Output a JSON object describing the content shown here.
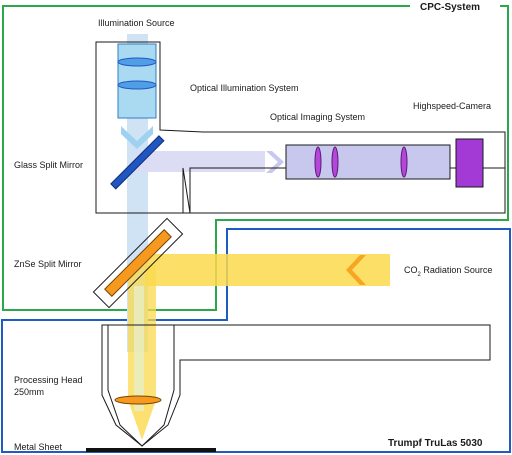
{
  "labels": {
    "illumination_source": "Illumination Source",
    "optical_illumination_system": "Optical Illumination System",
    "optical_imaging_system": "Optical Imaging System",
    "highspeed_camera": "Highspeed-Camera",
    "glass_split_mirror": "Glass Split Mirror",
    "znse_split_mirror": "ZnSe Split Mirror",
    "co2_prefix": "CO",
    "co2_subscript": "2",
    "co2_suffix": " Radiation Source",
    "processing_head_line1": "Processing Head",
    "processing_head_line2": "250mm",
    "metal_sheet": "Metal Sheet"
  },
  "systems": {
    "cpc_title": "CPC-System",
    "trumpf_title": "Trumpf TruLas 5030"
  },
  "colors": {
    "cpc_border": "#2aa84a",
    "trumpf_border": "#1f5bc4",
    "illumination_beam": "#cfe3f5",
    "imaging_beam": "#dcdcf5",
    "laser_beam": "#fbd94c",
    "glass_mirror": "#1f56c2",
    "znse_mirror": "#f59a1e",
    "lens": "#4f9ee6",
    "imaging_tube": "#c8c8ee",
    "camera": "#a33ad6"
  }
}
